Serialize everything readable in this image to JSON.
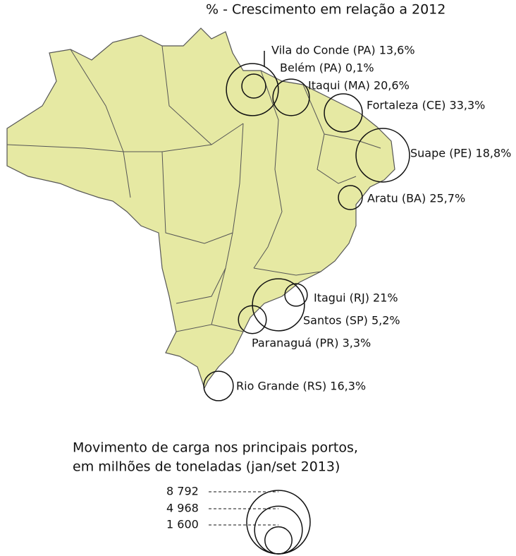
{
  "chart_data": {
    "type": "bubble-map",
    "title": "% - Crescimento em relação a 2012",
    "legend_title": [
      "Movimento de carga nos principais portos,",
      "em milhões de toneladas (jan/set 2013)"
    ],
    "legend_sizes": [
      {
        "value": 8792,
        "label": "8 792"
      },
      {
        "value": 4968,
        "label": "4 968"
      },
      {
        "value": 1600,
        "label": "1 600"
      }
    ],
    "ports": [
      {
        "label": "Vila do Conde (PA) 13,6%",
        "cargo": 5900
      },
      {
        "label": "Belém (PA) 0,1%",
        "cargo": 1250
      },
      {
        "label": "Itaqui (MA) 20,6%",
        "cargo": 2900
      },
      {
        "label": "Fortaleza (CE) 33,3%",
        "cargo": 3150
      },
      {
        "label": "Suape (PE) 18,8%",
        "cargo": 6250
      },
      {
        "label": "Aratu (BA) 25,7%",
        "cargo": 1250
      },
      {
        "label": "Itagui (RJ) 21%",
        "cargo": 1100
      },
      {
        "label": "Santos (SP) 5,2%",
        "cargo": 5900
      },
      {
        "label": "Paranaguá (PR) 3,3%",
        "cargo": 1700
      },
      {
        "label": "Rio Grande (RS) 16,3%",
        "cargo": 1900
      }
    ]
  }
}
